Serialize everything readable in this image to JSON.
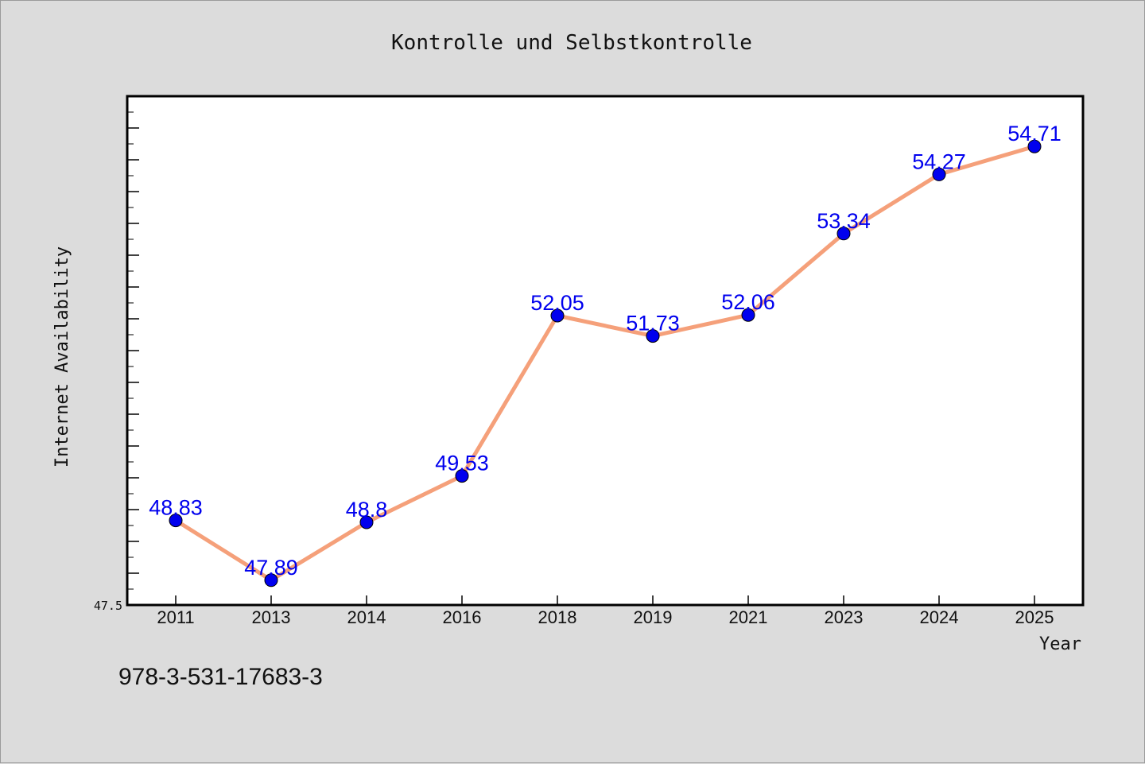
{
  "chart_data": {
    "type": "line",
    "title": "Kontrolle und Selbstkontrolle",
    "xlabel": "Year",
    "ylabel": "Internet Availability",
    "categories": [
      "2011",
      "2013",
      "2014",
      "2016",
      "2018",
      "2019",
      "2021",
      "2023",
      "2024",
      "2025"
    ],
    "series": [
      {
        "values": [
          48.83,
          47.89,
          48.8,
          49.53,
          52.05,
          51.73,
          52.06,
          53.34,
          54.27,
          54.71
        ],
        "labels": [
          "48.83",
          "47.89",
          "48.8",
          "49.53",
          "52.05",
          "51.73",
          "52.06",
          "53.34",
          "54.27",
          "54.71"
        ],
        "line_color": "#f5a07a",
        "marker_color": "#0000ee",
        "label_color": "#0000ee"
      }
    ],
    "ylim": [
      47.5,
      55.5
    ],
    "ytick_labels": [
      "47.5"
    ],
    "grid": false,
    "legend": false
  },
  "footer": {
    "text": "978-3-531-17683-3"
  }
}
